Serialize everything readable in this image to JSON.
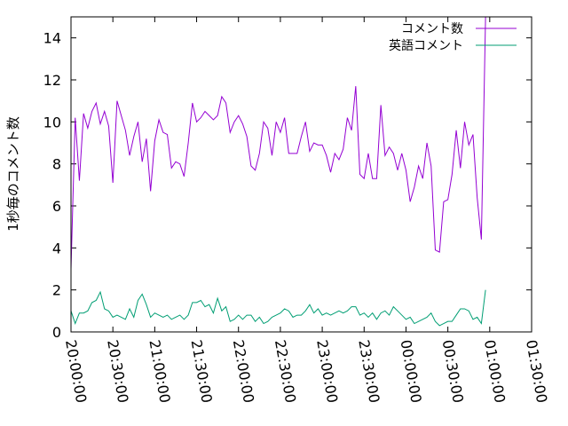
{
  "chart_data": {
    "type": "line",
    "ylabel": "1秒毎のコメント数",
    "xlim": [
      "20:00:00",
      "01:30:00"
    ],
    "ylim": [
      0,
      15
    ],
    "x_ticks": [
      "20:00:00",
      "20:30:00",
      "21:00:00",
      "21:30:00",
      "22:00:00",
      "22:30:00",
      "23:00:00",
      "23:30:00",
      "00:00:00",
      "00:30:00",
      "01:00:00",
      "01:30:00"
    ],
    "y_ticks": [
      "0",
      "2",
      "4",
      "6",
      "8",
      "10",
      "12",
      "14"
    ],
    "grid": false,
    "legend_position": "top-right",
    "x_start": "20:00:00",
    "x_step_minutes": 3,
    "series": [
      {
        "name": "コメント数",
        "color": "#9400d3",
        "values": [
          3.0,
          10.2,
          7.2,
          10.4,
          9.7,
          10.5,
          10.9,
          9.9,
          10.5,
          9.8,
          7.1,
          11.0,
          10.3,
          9.6,
          8.4,
          9.3,
          10.0,
          8.1,
          9.2,
          6.7,
          9.1,
          10.1,
          9.5,
          9.4,
          7.8,
          8.1,
          8.0,
          7.4,
          9.0,
          10.9,
          10.0,
          10.2,
          10.5,
          10.3,
          10.1,
          10.3,
          11.2,
          10.9,
          9.5,
          10.0,
          10.3,
          9.9,
          9.3,
          7.9,
          7.7,
          8.5,
          10.0,
          9.7,
          8.4,
          10.0,
          9.5,
          10.2,
          8.5,
          8.5,
          8.5,
          9.3,
          10.0,
          8.6,
          9.0,
          8.9,
          8.9,
          8.4,
          7.6,
          8.5,
          8.2,
          8.7,
          10.2,
          9.6,
          11.7,
          7.5,
          7.3,
          8.5,
          7.3,
          7.3,
          10.8,
          8.4,
          8.8,
          8.5,
          7.7,
          8.5,
          7.7,
          6.2,
          6.9,
          7.9,
          7.3,
          9.0,
          7.9,
          3.9,
          3.8,
          6.2,
          6.3,
          7.5,
          9.6,
          7.8,
          10.0,
          8.9,
          9.4,
          6.4,
          4.4,
          15.0
        ]
      },
      {
        "name": "英語コメント",
        "color": "#009e73",
        "values": [
          1.0,
          0.4,
          0.9,
          0.9,
          1.0,
          1.4,
          1.5,
          1.9,
          1.1,
          1.0,
          0.7,
          0.8,
          0.7,
          0.6,
          1.1,
          0.7,
          1.5,
          1.8,
          1.3,
          0.7,
          0.9,
          0.8,
          0.7,
          0.8,
          0.6,
          0.7,
          0.8,
          0.6,
          0.8,
          1.4,
          1.4,
          1.5,
          1.2,
          1.3,
          0.9,
          1.6,
          1.0,
          1.2,
          0.5,
          0.6,
          0.8,
          0.6,
          0.8,
          0.8,
          0.5,
          0.7,
          0.4,
          0.5,
          0.7,
          0.8,
          0.9,
          1.1,
          1.0,
          0.7,
          0.8,
          0.8,
          1.0,
          1.3,
          0.9,
          1.1,
          0.8,
          0.9,
          0.8,
          0.9,
          1.0,
          0.9,
          1.0,
          1.2,
          1.2,
          0.8,
          0.9,
          0.7,
          0.9,
          0.6,
          0.9,
          1.0,
          0.8,
          1.2,
          1.0,
          0.8,
          0.6,
          0.7,
          0.4,
          0.5,
          0.6,
          0.7,
          0.9,
          0.5,
          0.3,
          0.4,
          0.5,
          0.5,
          0.8,
          1.1,
          1.1,
          1.0,
          0.6,
          0.7,
          0.4,
          2.0
        ]
      }
    ]
  }
}
